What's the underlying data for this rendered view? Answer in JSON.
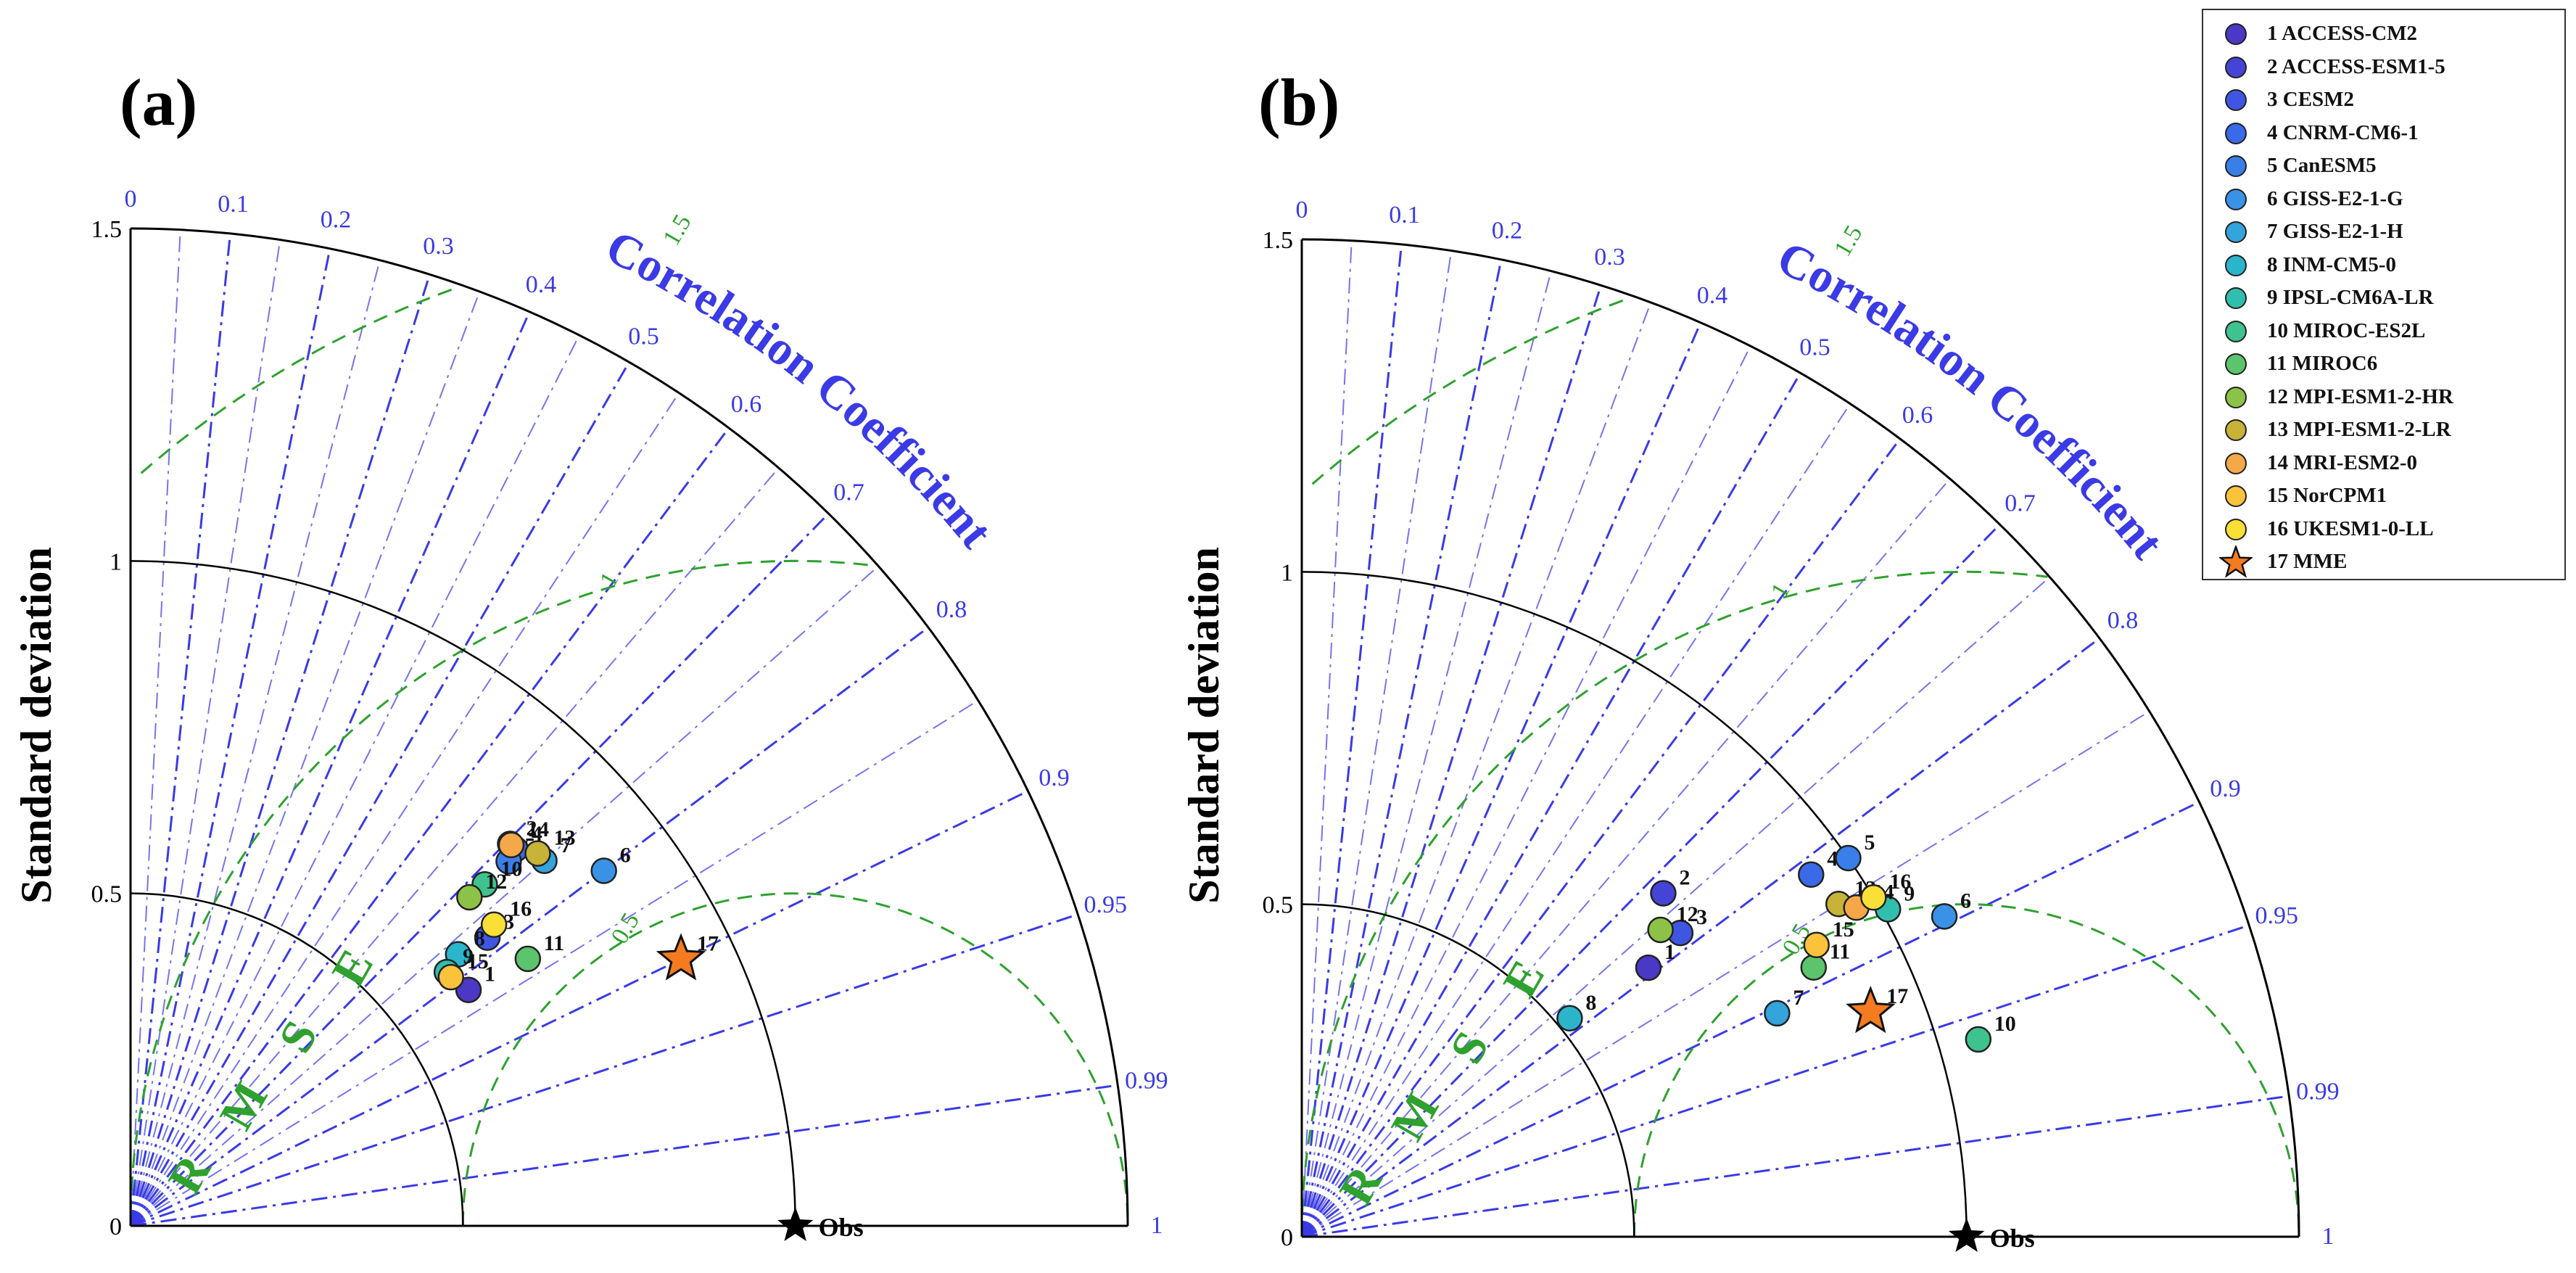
{
  "chart_data": [
    {
      "type": "taylor",
      "panel_label": "(a)",
      "ylabel": "Standard deviation",
      "arc_title": "Correlation Coefficient",
      "rmse_label": [
        "R",
        "M",
        "S",
        "E"
      ],
      "std_max": 1.5,
      "std_ticks": [
        "0",
        "0.5",
        "1",
        "1.5"
      ],
      "corr_ticks": [
        "0",
        "0.1",
        "0.2",
        "0.3",
        "0.4",
        "0.5",
        "0.6",
        "0.7",
        "0.8",
        "0.9",
        "0.95",
        "0.99",
        "1"
      ],
      "rmse_ticks": [
        "0.5",
        "1",
        "1.5"
      ],
      "obs_label": "Obs",
      "obs_std": 1.0,
      "points": [
        {
          "id": "1",
          "std": 0.62,
          "corr": 0.82
        },
        {
          "id": "2",
          "std": 0.81,
          "corr": 0.705
        },
        {
          "id": "3",
          "std": 0.69,
          "corr": 0.778
        },
        {
          "id": "4",
          "std": 0.81,
          "corr": 0.715
        },
        {
          "id": "5",
          "std": 0.79,
          "corr": 0.72
        },
        {
          "id": "6",
          "std": 0.89,
          "corr": 0.8
        },
        {
          "id": "7",
          "std": 0.83,
          "corr": 0.75
        },
        {
          "id": "8",
          "std": 0.64,
          "corr": 0.77
        },
        {
          "id": "9",
          "std": 0.61,
          "corr": 0.78
        },
        {
          "id": "10",
          "std": 0.74,
          "corr": 0.72
        },
        {
          "id": "11",
          "std": 0.72,
          "corr": 0.83
        },
        {
          "id": "12",
          "std": 0.71,
          "corr": 0.718
        },
        {
          "id": "13",
          "std": 0.83,
          "corr": 0.738
        },
        {
          "id": "14",
          "std": 0.81,
          "corr": 0.707
        },
        {
          "id": "15",
          "std": 0.61,
          "corr": 0.79
        },
        {
          "id": "16",
          "std": 0.71,
          "corr": 0.77
        },
        {
          "id": "17",
          "std": 0.92,
          "corr": 0.9,
          "star": true
        }
      ]
    },
    {
      "type": "taylor",
      "panel_label": "(b)",
      "ylabel": "Standard deviation",
      "arc_title": "Correlation Coefficient",
      "rmse_label": [
        "R",
        "M",
        "S",
        "E"
      ],
      "std_max": 1.5,
      "std_ticks": [
        "0",
        "0.5",
        "1",
        "1.5"
      ],
      "corr_ticks": [
        "0",
        "0.1",
        "0.2",
        "0.3",
        "0.4",
        "0.5",
        "0.6",
        "0.7",
        "0.8",
        "0.9",
        "0.95",
        "0.99",
        "1"
      ],
      "rmse_ticks": [
        "0.5",
        "1",
        "1.5"
      ],
      "obs_label": "Obs",
      "obs_std": 1.0,
      "points": [
        {
          "id": "1",
          "std": 0.66,
          "corr": 0.79
        },
        {
          "id": "2",
          "std": 0.75,
          "corr": 0.725
        },
        {
          "id": "3",
          "std": 0.73,
          "corr": 0.78
        },
        {
          "id": "4",
          "std": 0.94,
          "corr": 0.815
        },
        {
          "id": "5",
          "std": 1.0,
          "corr": 0.822
        },
        {
          "id": "6",
          "std": 1.08,
          "corr": 0.895
        },
        {
          "id": "7",
          "std": 0.79,
          "corr": 0.905
        },
        {
          "id": "8",
          "std": 0.52,
          "corr": 0.775
        },
        {
          "id": "9",
          "std": 1.01,
          "corr": 0.873
        },
        {
          "id": "10",
          "std": 1.06,
          "corr": 0.96
        },
        {
          "id": "11",
          "std": 0.87,
          "corr": 0.885
        },
        {
          "id": "12",
          "std": 0.71,
          "corr": 0.76
        },
        {
          "id": "13",
          "std": 0.95,
          "corr": 0.85
        },
        {
          "id": "14",
          "std": 0.97,
          "corr": 0.86
        },
        {
          "id": "15",
          "std": 0.89,
          "corr": 0.87
        },
        {
          "id": "16",
          "std": 1.0,
          "corr": 0.86
        },
        {
          "id": "17",
          "std": 0.92,
          "corr": 0.93,
          "star": true
        }
      ]
    }
  ],
  "legend": {
    "items": [
      {
        "id": "1",
        "label": "1 ACCESS-CM2",
        "color": "#4b38c4"
      },
      {
        "id": "2",
        "label": "2 ACCESS-ESM1-5",
        "color": "#4445d6"
      },
      {
        "id": "3",
        "label": "3 CESM2",
        "color": "#3f56e2"
      },
      {
        "id": "4",
        "label": "4 CNRM-CM6-1",
        "color": "#3b6ae8"
      },
      {
        "id": "5",
        "label": "5 CanESM5",
        "color": "#3a7eea"
      },
      {
        "id": "6",
        "label": "6 GISS-E2-1-G",
        "color": "#3a92e6"
      },
      {
        "id": "7",
        "label": "7 GISS-E2-1-H",
        "color": "#33a4dc"
      },
      {
        "id": "8",
        "label": "8 INM-CM5-0",
        "color": "#2bb5cb"
      },
      {
        "id": "9",
        "label": "9 IPSL-CM6A-LR",
        "color": "#30bfae"
      },
      {
        "id": "10",
        "label": "10 MIROC-ES2L",
        "color": "#3fc38e"
      },
      {
        "id": "11",
        "label": "11 MIROC6",
        "color": "#5cc46c"
      },
      {
        "id": "12",
        "label": "12 MPI-ESM1-2-HR",
        "color": "#8cc248"
      },
      {
        "id": "13",
        "label": "13 MPI-ESM1-2-LR",
        "color": "#c6b338"
      },
      {
        "id": "14",
        "label": "14 MRI-ESM2-0",
        "color": "#f4a84a"
      },
      {
        "id": "15",
        "label": "15 NorCPM1",
        "color": "#fbc33c"
      },
      {
        "id": "16",
        "label": "16 UKESM1-0-LL",
        "color": "#f9df36"
      },
      {
        "id": "17",
        "label": "17 MME",
        "color": "#f47b20"
      }
    ]
  },
  "colors": {
    "corr_line": "#3a3ae6",
    "rmse_line": "#2ea12e",
    "arc": "#000000",
    "star": "#f47b20"
  }
}
